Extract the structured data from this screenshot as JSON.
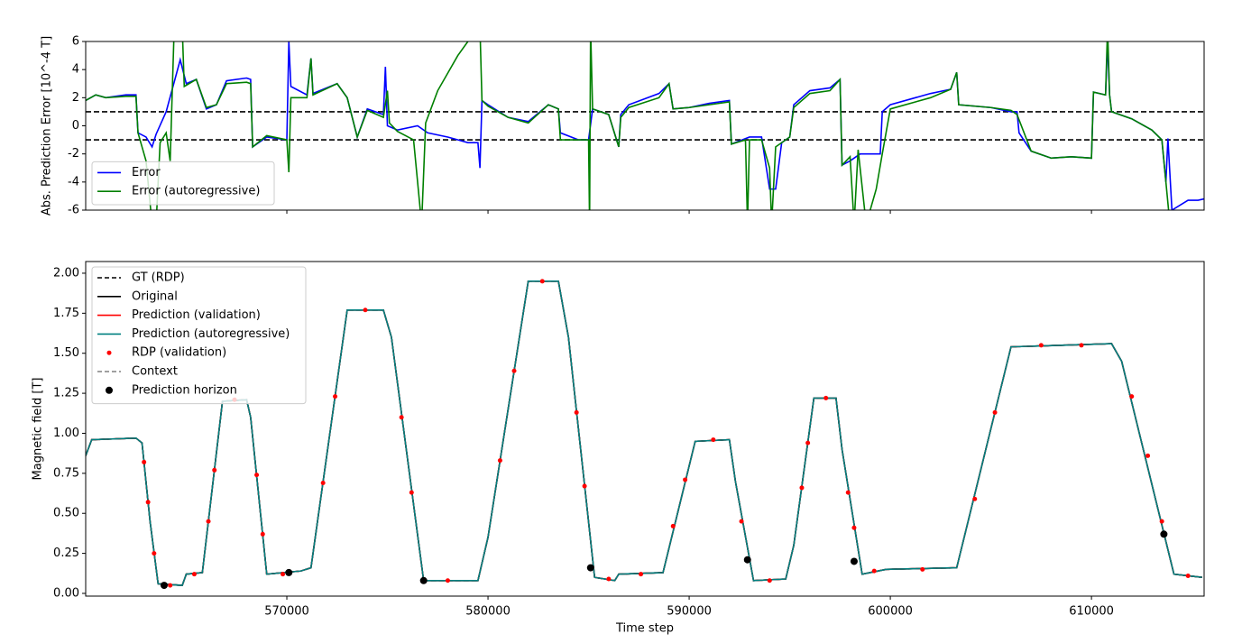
{
  "chart_data": [
    {
      "type": "line",
      "ylabel": "Abs. Prediction Error [10^-4 T]",
      "xlim": [
        560000,
        615600
      ],
      "xticks": [
        570000,
        580000,
        590000,
        600000,
        610000
      ],
      "ylim": [
        -6,
        6
      ],
      "yticks": [
        -6,
        -4,
        -2,
        0,
        2,
        4,
        6
      ],
      "hlines": [
        1,
        -1
      ],
      "hline_color": "#000000",
      "legend": "lower left",
      "series": [
        {
          "name": "Error",
          "color": "#0000ff",
          "x": [
            560000,
            560500,
            561000,
            562000,
            562500,
            562600,
            563000,
            563300,
            563500,
            564000,
            564700,
            565000,
            565500,
            566000,
            566500,
            567000,
            568000,
            568200,
            568300,
            569000,
            570000,
            570100,
            570200,
            571000,
            571200,
            571300,
            572500,
            573000,
            573500,
            574000,
            574800,
            574900,
            575000,
            575500,
            576500,
            577000,
            578000,
            579000,
            579500,
            579600,
            579700,
            580000,
            581000,
            582000,
            583000,
            583500,
            583600,
            584500,
            585000,
            585200,
            586000,
            586500,
            586600,
            587000,
            588500,
            589000,
            589200,
            590000,
            591000,
            592000,
            592100,
            593000,
            593600,
            594000,
            594300,
            594600,
            595000,
            595200,
            596000,
            597000,
            597500,
            597600,
            598000,
            598500,
            599500,
            599600,
            600000,
            602000,
            603000,
            603300,
            603400,
            605000,
            606000,
            606300,
            606400,
            607000,
            608000,
            609000,
            610000,
            610100,
            610700,
            610800,
            610900,
            611000,
            612000,
            613000,
            613500,
            613700,
            613800,
            614000,
            614800,
            615300,
            615600
          ],
          "values": [
            1.8,
            2.2,
            2.0,
            2.2,
            2.2,
            -0.5,
            -0.8,
            -1.5,
            -0.6,
            1.0,
            4.7,
            3.0,
            3.3,
            1.2,
            1.5,
            3.2,
            3.4,
            3.3,
            -1.5,
            -0.8,
            -1.0,
            6,
            2.8,
            2.2,
            4.8,
            2.3,
            3.0,
            2.0,
            -0.8,
            1.2,
            0.8,
            4.2,
            0,
            -0.3,
            0.0,
            -0.5,
            -0.8,
            -1.2,
            -1.2,
            -3,
            1.8,
            1.5,
            0.6,
            0.3,
            1.5,
            1.2,
            -0.5,
            -1.0,
            -1.0,
            1.2,
            0.8,
            -1.5,
            0.8,
            1.5,
            2.3,
            3.0,
            1.2,
            1.3,
            1.6,
            1.8,
            -1.3,
            -0.8,
            -0.8,
            -4.5,
            -4.5,
            -1.2,
            -0.8,
            1.5,
            2.5,
            2.7,
            3.3,
            -2.8,
            -2.5,
            -2.0,
            -2.0,
            1.0,
            1.5,
            2.3,
            2.6,
            3.8,
            1.5,
            1.3,
            1.0,
            1.0,
            -0.5,
            -1.8,
            -2.3,
            -2.2,
            -2.3,
            2.4,
            2.2,
            6,
            2.2,
            1.0,
            0.5,
            -0.3,
            -1.0,
            -4,
            -0.9,
            -6,
            -5.3,
            -5.3,
            -5.2
          ]
        },
        {
          "name": "Error (autoregressive)",
          "color": "#008000",
          "x": [
            560000,
            560500,
            561000,
            562000,
            562500,
            562600,
            563000,
            563300,
            563500,
            563700,
            564000,
            564200,
            564400,
            564800,
            564900,
            565500,
            566000,
            566500,
            567000,
            568000,
            568200,
            568300,
            569000,
            570000,
            570100,
            570200,
            571000,
            571200,
            571300,
            572500,
            573000,
            573500,
            574000,
            574800,
            575000,
            575100,
            575500,
            576300,
            576700,
            576900,
            577500,
            578500,
            579000,
            579600,
            579700,
            580000,
            581000,
            582000,
            583000,
            583500,
            583600,
            584500,
            585000,
            585050,
            585100,
            585200,
            586000,
            586500,
            586600,
            587000,
            588500,
            589000,
            589200,
            590000,
            591000,
            592000,
            592100,
            592800,
            592900,
            593000,
            593600,
            594000,
            594100,
            594300,
            595000,
            595200,
            596000,
            597000,
            597500,
            597600,
            598000,
            598200,
            598400,
            598800,
            599300,
            599600,
            600000,
            602000,
            603000,
            603300,
            603400,
            605000,
            606000,
            606300,
            607000,
            608000,
            609000,
            610000,
            610100,
            610700,
            610800,
            610900,
            611000,
            612000,
            613000,
            613500,
            613900
          ],
          "values": [
            1.8,
            2.2,
            2.0,
            2.1,
            2.1,
            -0.5,
            -2.5,
            -7,
            -7,
            -1.2,
            -0.5,
            -2.5,
            7,
            7,
            2.8,
            3.3,
            1.3,
            1.5,
            3.0,
            3.1,
            3.0,
            -1.5,
            -0.7,
            -1.0,
            -3.3,
            2.0,
            2.0,
            4.8,
            2.2,
            3.0,
            2.0,
            -0.8,
            1.1,
            0.6,
            2.5,
            0.2,
            -0.4,
            -1.0,
            -7,
            0.2,
            2.5,
            5.0,
            6.0,
            7,
            1.8,
            1.4,
            0.6,
            0.2,
            1.5,
            1.2,
            -1.0,
            -1.0,
            -1.0,
            -7,
            7,
            1.2,
            0.8,
            -1.5,
            0.6,
            1.3,
            2.0,
            3.0,
            1.2,
            1.3,
            1.5,
            1.7,
            -1.3,
            -1.0,
            -7,
            -1.0,
            -1.0,
            -3.0,
            -7,
            -1.5,
            -0.8,
            1.3,
            2.3,
            2.5,
            3.3,
            -2.8,
            -2.2,
            -7,
            -1.7,
            -7,
            -4.5,
            -2.0,
            1.2,
            2.0,
            2.6,
            3.8,
            1.5,
            1.3,
            1.1,
            0.8,
            -1.8,
            -2.3,
            -2.2,
            -2.3,
            2.4,
            2.2,
            7,
            2.2,
            1.0,
            0.5,
            -0.3,
            -1.0,
            -7
          ]
        }
      ]
    },
    {
      "type": "line",
      "xlabel": "Time step",
      "ylabel": "Magnetic field [T]",
      "xlim": [
        560000,
        615600
      ],
      "xticks": [
        570000,
        580000,
        590000,
        600000,
        610000
      ],
      "ylim": [
        -0.017,
        2.073
      ],
      "yticks": [
        {
          "value": 0,
          "label": "0.00"
        },
        0.25,
        {
          "value": 0.5,
          "label": "0.50"
        },
        0.75,
        {
          "value": 1,
          "label": "1.00"
        },
        1.25,
        {
          "value": 1.5,
          "label": "1.50"
        },
        1.75,
        {
          "value": 2,
          "label": "2.00"
        }
      ],
      "legend": "upper left",
      "x": [
        560000,
        560300,
        562500,
        562800,
        563200,
        563600,
        564800,
        565000,
        565800,
        566800,
        568000,
        568200,
        569000,
        570700,
        571200,
        573000,
        574800,
        575200,
        576800,
        579500,
        580000,
        582000,
        583500,
        584000,
        585300,
        586300,
        586500,
        588700,
        590300,
        592000,
        592300,
        593200,
        594800,
        595200,
        596200,
        597300,
        597600,
        598600,
        599800,
        603300,
        606000,
        611000,
        611500,
        614100,
        615500
      ],
      "series": [
        {
          "name": "GT (RDP)",
          "color": "#000000",
          "linestyle": "dashed",
          "values": [
            0.86,
            0.96,
            0.97,
            0.94,
            0.45,
            0.06,
            0.05,
            0.12,
            0.13,
            1.2,
            1.21,
            1.1,
            0.12,
            0.14,
            0.16,
            1.77,
            1.77,
            1.6,
            0.08,
            0.08,
            0.35,
            1.95,
            1.95,
            1.6,
            0.1,
            0.08,
            0.12,
            0.13,
            0.95,
            0.96,
            0.7,
            0.08,
            0.09,
            0.3,
            1.22,
            1.22,
            0.9,
            0.12,
            0.15,
            0.16,
            1.54,
            1.56,
            1.45,
            0.12,
            0.1
          ]
        },
        {
          "name": "Original",
          "color": "#000000",
          "values": [
            0.86,
            0.96,
            0.97,
            0.94,
            0.45,
            0.06,
            0.05,
            0.12,
            0.13,
            1.2,
            1.21,
            1.1,
            0.12,
            0.14,
            0.16,
            1.77,
            1.77,
            1.6,
            0.08,
            0.08,
            0.35,
            1.95,
            1.95,
            1.6,
            0.1,
            0.08,
            0.12,
            0.13,
            0.95,
            0.96,
            0.7,
            0.08,
            0.09,
            0.3,
            1.22,
            1.22,
            0.9,
            0.12,
            0.15,
            0.16,
            1.54,
            1.56,
            1.45,
            0.12,
            0.1
          ]
        },
        {
          "name": "Prediction (validation)",
          "color": "#ff0000",
          "values": [
            0.86,
            0.96,
            0.97,
            0.94,
            0.45,
            0.06,
            0.05,
            0.12,
            0.13,
            1.2,
            1.21,
            1.1,
            0.12,
            0.14,
            0.16,
            1.77,
            1.77,
            1.6,
            0.08,
            0.08,
            0.35,
            1.95,
            1.95,
            1.6,
            0.1,
            0.08,
            0.12,
            0.13,
            0.95,
            0.96,
            0.7,
            0.08,
            0.09,
            0.3,
            1.22,
            1.22,
            0.9,
            0.12,
            0.15,
            0.16,
            1.54,
            1.56,
            1.45,
            0.12,
            0.1
          ]
        },
        {
          "name": "Prediction (autoregressive)",
          "color": "#008080",
          "values": [
            0.86,
            0.96,
            0.97,
            0.94,
            0.45,
            0.06,
            0.05,
            0.12,
            0.13,
            1.2,
            1.21,
            1.1,
            0.12,
            0.14,
            0.16,
            1.77,
            1.77,
            1.6,
            0.08,
            0.08,
            0.35,
            1.95,
            1.95,
            1.6,
            0.1,
            0.08,
            0.12,
            0.13,
            0.95,
            0.96,
            0.7,
            0.08,
            0.09,
            0.3,
            1.22,
            1.22,
            0.9,
            0.12,
            0.15,
            0.16,
            1.54,
            1.56,
            1.45,
            0.12,
            0.1
          ]
        },
        {
          "name": "RDP (validation)",
          "color": "#ff0000",
          "type": "scatter",
          "marker_size": 2.5,
          "x": [
            562900,
            563100,
            563400,
            564200,
            565400,
            566100,
            566400,
            567400,
            568500,
            568800,
            569800,
            571800,
            572400,
            573900,
            575700,
            576200,
            578000,
            580600,
            581300,
            582700,
            584400,
            584800,
            586000,
            587600,
            589200,
            589800,
            591200,
            592600,
            592900,
            594000,
            595600,
            595900,
            596800,
            597900,
            598200,
            599200,
            601600,
            604200,
            605200,
            607500,
            609500,
            612000,
            612800,
            613500,
            614800
          ],
          "values": [
            0.82,
            0.57,
            0.25,
            0.05,
            0.12,
            0.45,
            0.77,
            1.21,
            0.74,
            0.37,
            0.12,
            0.69,
            1.23,
            1.77,
            1.1,
            0.63,
            0.08,
            0.83,
            1.39,
            1.95,
            1.13,
            0.67,
            0.09,
            0.12,
            0.42,
            0.71,
            0.96,
            0.45,
            0.21,
            0.08,
            0.66,
            0.94,
            1.22,
            0.63,
            0.41,
            0.14,
            0.15,
            0.59,
            1.13,
            1.55,
            1.55,
            1.23,
            0.86,
            0.45,
            0.11
          ]
        },
        {
          "name": "Context",
          "color": "#808080",
          "linestyle": "dashed",
          "x": [],
          "values": []
        },
        {
          "name": "Prediction horizon",
          "color": "#000000",
          "type": "scatter",
          "marker_size": 4,
          "x": [
            563900,
            570100,
            576800,
            585100,
            592900,
            598200,
            613600
          ],
          "values": [
            0.05,
            0.13,
            0.08,
            0.16,
            0.21,
            0.2,
            0.37
          ]
        }
      ]
    }
  ]
}
